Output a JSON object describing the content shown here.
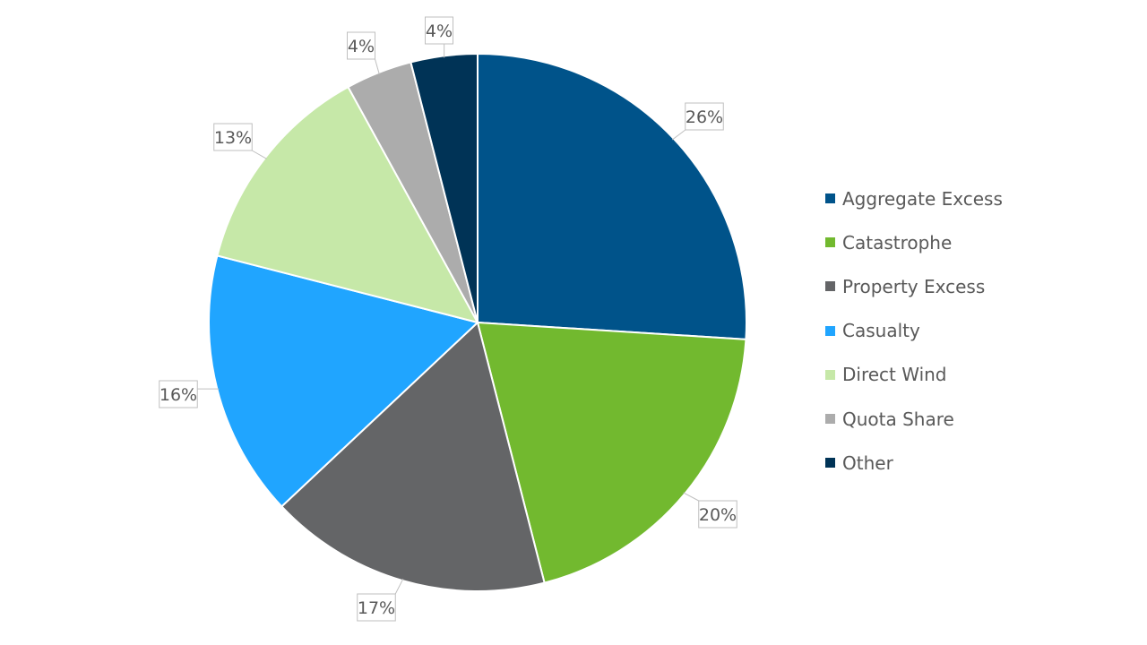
{
  "chart_data": {
    "type": "pie",
    "title": "",
    "start_angle_deg": 0,
    "direction": "clockwise",
    "legend_position": "right",
    "slices": [
      {
        "name": "Aggregate Excess",
        "value": 26,
        "label": "26%",
        "color": "#00538a"
      },
      {
        "name": "Catastrophe",
        "value": 20,
        "label": "20%",
        "color": "#72b92f"
      },
      {
        "name": "Property Excess",
        "value": 17,
        "label": "17%",
        "color": "#646567"
      },
      {
        "name": "Casualty",
        "value": 16,
        "label": "16%",
        "color": "#20a5ff"
      },
      {
        "name": "Direct Wind",
        "value": 13,
        "label": "13%",
        "color": "#c6e8a8"
      },
      {
        "name": "Quota Share",
        "value": 4,
        "label": "4%",
        "color": "#acacac"
      },
      {
        "name": "Other",
        "value": 4,
        "label": "4%",
        "color": "#003356"
      }
    ]
  }
}
